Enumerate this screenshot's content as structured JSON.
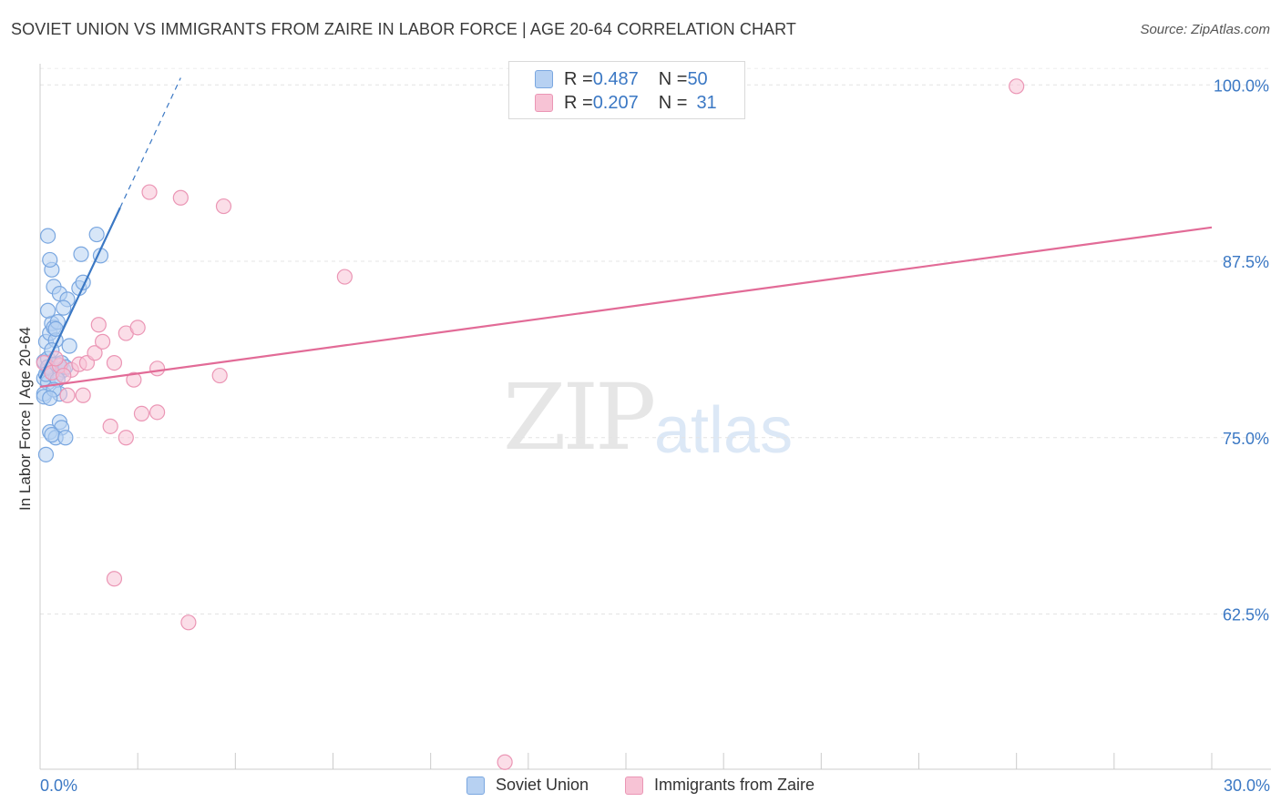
{
  "title": "SOVIET UNION VS IMMIGRANTS FROM ZAIRE IN LABOR FORCE | AGE 20-64 CORRELATION CHART",
  "source": "Source: ZipAtlas.com",
  "watermark": {
    "zip": "ZIP",
    "atlas": "atlas"
  },
  "legend_top": [
    {
      "r_label": "R = ",
      "r_value": "0.487",
      "n_label": "N = ",
      "n_value": "50"
    },
    {
      "r_label": "R = ",
      "r_value": "0.207",
      "n_label": "N = ",
      "n_value": "31"
    }
  ],
  "colors": {
    "blue": "#3b78c4",
    "blue_fill": "#b7d1f2",
    "pink": "#e26b97",
    "pink_fill": "#f7c3d5"
  },
  "chart_data": {
    "type": "scatter",
    "title": "SOVIET UNION VS IMMIGRANTS FROM ZAIRE IN LABOR FORCE | AGE 20-64 CORRELATION CHART",
    "xlabel": "",
    "ylabel": "In Labor Force | Age 20-64",
    "xlim": [
      0,
      30
    ],
    "ylim": [
      51.5,
      101.5
    ],
    "x_tick_labels": [
      "0.0%",
      "30.0%"
    ],
    "y_ticks": [
      62.5,
      75.0,
      87.5,
      100.0
    ],
    "y_tick_labels": [
      "62.5%",
      "75.0%",
      "87.5%",
      "100.0%"
    ],
    "grid": true,
    "legend_position": "bottom",
    "series": [
      {
        "name": "Soviet Union",
        "color": "#3b78c4",
        "trend": {
          "x": [
            0.0,
            2.05
          ],
          "y": [
            79.2,
            91.3
          ]
        },
        "trend_dashed": {
          "x": [
            2.05,
            3.6
          ],
          "y": [
            91.3,
            100.5
          ]
        },
        "points": [
          [
            0.1,
            80.4
          ],
          [
            0.2,
            79.8
          ],
          [
            0.1,
            79.2
          ],
          [
            0.3,
            80.1
          ],
          [
            0.2,
            78.9
          ],
          [
            0.1,
            78.1
          ],
          [
            0.15,
            81.8
          ],
          [
            0.25,
            82.4
          ],
          [
            0.3,
            83.1
          ],
          [
            0.2,
            84.0
          ],
          [
            0.35,
            82.8
          ],
          [
            0.4,
            81.9
          ],
          [
            0.45,
            80.2
          ],
          [
            0.5,
            79.6
          ],
          [
            0.3,
            79.9
          ],
          [
            0.2,
            80.6
          ],
          [
            0.1,
            77.9
          ],
          [
            0.5,
            76.1
          ],
          [
            0.55,
            75.7
          ],
          [
            0.25,
            75.4
          ],
          [
            0.4,
            75.0
          ],
          [
            0.3,
            75.2
          ],
          [
            0.15,
            73.8
          ],
          [
            0.65,
            75.0
          ],
          [
            0.5,
            78.1
          ],
          [
            0.4,
            79.3
          ],
          [
            0.6,
            79.8
          ],
          [
            0.55,
            80.3
          ],
          [
            0.35,
            85.7
          ],
          [
            0.5,
            85.2
          ],
          [
            0.3,
            86.9
          ],
          [
            0.25,
            87.6
          ],
          [
            0.2,
            89.3
          ],
          [
            0.45,
            83.2
          ],
          [
            0.7,
            84.8
          ],
          [
            1.0,
            85.6
          ],
          [
            1.1,
            86.0
          ],
          [
            1.05,
            88.0
          ],
          [
            1.55,
            87.9
          ],
          [
            1.45,
            89.4
          ],
          [
            0.6,
            84.2
          ],
          [
            0.4,
            82.7
          ],
          [
            0.3,
            81.2
          ],
          [
            0.2,
            80.0
          ],
          [
            0.15,
            79.5
          ],
          [
            0.45,
            79.1
          ],
          [
            0.65,
            80.0
          ],
          [
            0.75,
            81.5
          ],
          [
            0.35,
            78.4
          ],
          [
            0.25,
            77.8
          ]
        ]
      },
      {
        "name": "Immigrants from Zaire",
        "color": "#e26b97",
        "trend": {
          "x": [
            0.0,
            30.0
          ],
          "y": [
            78.6,
            89.9
          ]
        },
        "points": [
          [
            0.1,
            80.3
          ],
          [
            0.3,
            79.6
          ],
          [
            0.5,
            80.1
          ],
          [
            0.7,
            78.0
          ],
          [
            0.8,
            79.8
          ],
          [
            1.0,
            80.2
          ],
          [
            1.2,
            80.3
          ],
          [
            1.4,
            81.0
          ],
          [
            1.6,
            81.8
          ],
          [
            1.5,
            83.0
          ],
          [
            2.2,
            82.4
          ],
          [
            2.5,
            82.8
          ],
          [
            1.9,
            80.3
          ],
          [
            2.4,
            79.1
          ],
          [
            3.0,
            79.9
          ],
          [
            2.6,
            76.7
          ],
          [
            3.0,
            76.8
          ],
          [
            1.8,
            75.8
          ],
          [
            2.2,
            75.0
          ],
          [
            1.1,
            78.0
          ],
          [
            4.6,
            79.4
          ],
          [
            2.8,
            92.4
          ],
          [
            3.6,
            92.0
          ],
          [
            4.7,
            91.4
          ],
          [
            7.8,
            86.4
          ],
          [
            1.9,
            65.0
          ],
          [
            3.8,
            61.9
          ],
          [
            11.9,
            52.0
          ],
          [
            25.0,
            99.9
          ],
          [
            0.4,
            80.6
          ],
          [
            0.6,
            79.4
          ]
        ]
      }
    ]
  },
  "legend_bottom": [
    "Soviet Union",
    "Immigrants from Zaire"
  ],
  "x_min_label": "0.0%",
  "x_max_label": "30.0%"
}
